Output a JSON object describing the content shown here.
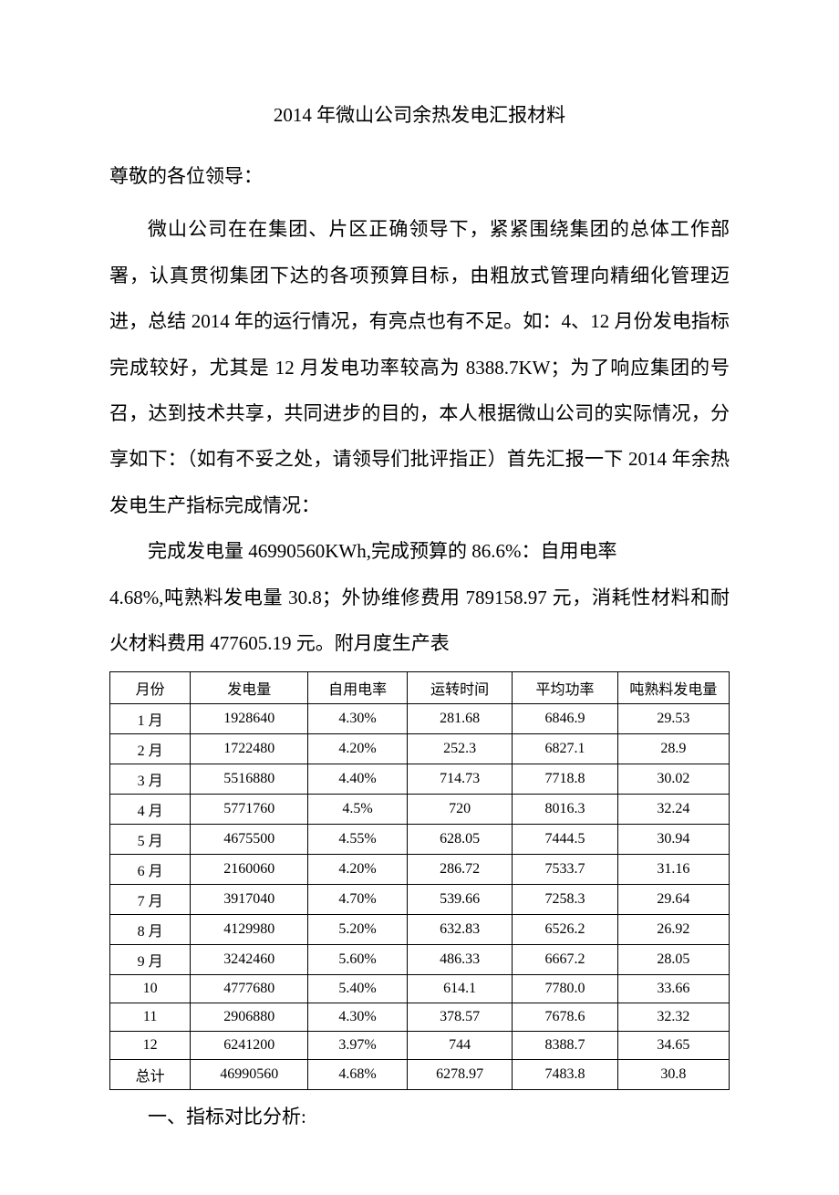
{
  "title": "2014 年微山公司余热发电汇报材料",
  "salutation": "尊敬的各位领导：",
  "intro_para": "微山公司在在集团、片区正确领导下，紧紧围绕集团的总体工作部署，认真贯彻集团下达的各项预算目标，由粗放式管理向精细化管理迈进，总结 2014 年的运行情况，有亮点也有不足。如：4、12 月份发电指标完成较好，尤其是 12 月发电功率较高为 8388.7KW；为了响应集团的号召，达到技术共享，共同进步的目的，本人根据微山公司的实际情况，分享如下：（如有不妥之处，请领导们批评指正）首先汇报一下 2014 年余热发电生产指标完成情况：",
  "summary_line1": "完成发电量 46990560KWh,完成预算的 86.6%：自用电率",
  "summary_line2": "4.68%,吨熟料发电量 30.8；外协维修费用 789158.97 元，消耗性材料和耐火材料费用 477605.19 元。附月度生产表",
  "table": {
    "columns": [
      "月份",
      "发电量",
      "自用电率",
      "运转时间",
      "平均功率",
      "吨熟料发电量"
    ],
    "rows": [
      [
        "1 月",
        "1928640",
        "4.30%",
        "281.68",
        "6846.9",
        "29.53"
      ],
      [
        "2 月",
        "1722480",
        "4.20%",
        "252.3",
        "6827.1",
        "28.9"
      ],
      [
        "3 月",
        "5516880",
        "4.40%",
        "714.73",
        "7718.8",
        "30.02"
      ],
      [
        "4 月",
        "5771760",
        "4.5%",
        "720",
        "8016.3",
        "32.24"
      ],
      [
        "5 月",
        "4675500",
        "4.55%",
        "628.05",
        "7444.5",
        "30.94"
      ],
      [
        "6 月",
        "2160060",
        "4.20%",
        "286.72",
        "7533.7",
        "31.16"
      ],
      [
        "7 月",
        "3917040",
        "4.70%",
        "539.66",
        "7258.3",
        "29.64"
      ],
      [
        "8 月",
        "4129980",
        "5.20%",
        "632.83",
        "6526.2",
        "26.92"
      ],
      [
        "9 月",
        "3242460",
        "5.60%",
        "486.33",
        "6667.2",
        "28.05"
      ],
      [
        "10",
        "4777680",
        "5.40%",
        "614.1",
        "7780.0",
        "33.66"
      ],
      [
        "11",
        "2906880",
        "4.30%",
        "378.57",
        "7678.6",
        "32.32"
      ],
      [
        "12",
        "6241200",
        "3.97%",
        "744",
        "8388.7",
        "34.65"
      ],
      [
        "总计",
        "46990560",
        "4.68%",
        "6278.97",
        "7483.8",
        "30.8"
      ]
    ],
    "col_widths_pct": [
      13,
      19,
      16,
      17,
      17,
      18
    ],
    "border_color": "#000000",
    "header_fontsize": 16,
    "cell_fontsize": 16
  },
  "section1_heading": "一、指标对比分析:"
}
